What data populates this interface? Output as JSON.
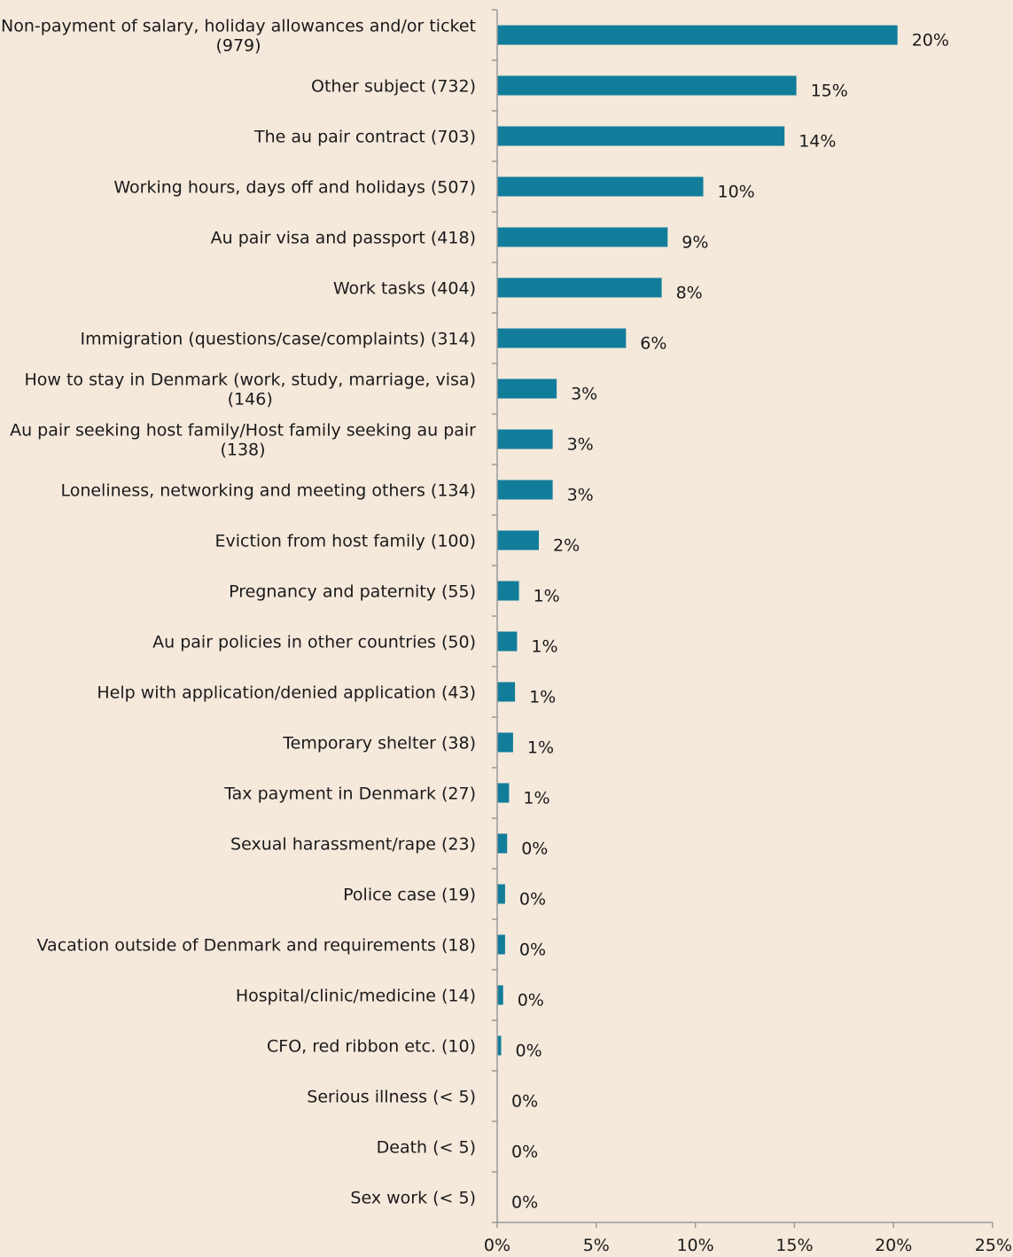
{
  "chart_data": {
    "type": "bar",
    "orientation": "horizontal",
    "bar_color": "#127d9a",
    "background_color": "#f5e9dc",
    "grid": false,
    "legend": "none",
    "xlim": [
      0,
      25
    ],
    "x_ticks": [
      0,
      5,
      10,
      15,
      20,
      25
    ],
    "x_tick_labels": [
      "0%",
      "5%",
      "10%",
      "15%",
      "20%",
      "25%"
    ],
    "categories": [
      [
        "Non-payment of salary, holiday allowances and/or ticket",
        "(979)"
      ],
      [
        "Other subject (732)"
      ],
      [
        "The au pair contract (703)"
      ],
      [
        "Working hours, days off and holidays (507)"
      ],
      [
        "Au pair visa and passport (418)"
      ],
      [
        "Work tasks (404)"
      ],
      [
        "Immigration (questions/case/complaints) (314)"
      ],
      [
        "How to stay in Denmark (work, study, marriage, visa)",
        "(146)"
      ],
      [
        "Au pair seeking host family/Host family seeking au pair",
        "(138)"
      ],
      [
        "Loneliness, networking and meeting others (134)"
      ],
      [
        "Eviction from host family (100)"
      ],
      [
        "Pregnancy and paternity  (55)"
      ],
      [
        "Au pair policies in other countries (50)"
      ],
      [
        "Help with application/denied application (43)"
      ],
      [
        "Temporary shelter (38)"
      ],
      [
        "Tax payment in Denmark (27)"
      ],
      [
        "Sexual harassment/rape (23)"
      ],
      [
        "Police case (19)"
      ],
      [
        "Vacation outside of Denmark and requirements (18)"
      ],
      [
        "Hospital/clinic/medicine (14)"
      ],
      [
        "CFO, red ribbon etc. (10)"
      ],
      [
        "Serious illness (< 5)"
      ],
      [
        "Death (< 5)"
      ],
      [
        "Sex work (< 5)"
      ]
    ],
    "values": [
      20.2,
      15.1,
      14.5,
      10.4,
      8.6,
      8.3,
      6.5,
      3.0,
      2.8,
      2.8,
      2.1,
      1.1,
      1.0,
      0.9,
      0.8,
      0.6,
      0.5,
      0.4,
      0.4,
      0.3,
      0.2,
      0.0,
      0.0,
      0.0
    ],
    "data_labels": [
      "20%",
      "15%",
      "14%",
      "10%",
      "9%",
      "8%",
      "6%",
      "3%",
      "3%",
      "3%",
      "2%",
      "1%",
      "1%",
      "1%",
      "1%",
      "1%",
      "0%",
      "0%",
      "0%",
      "0%",
      "0%",
      "0%",
      "0%",
      "0%"
    ]
  }
}
